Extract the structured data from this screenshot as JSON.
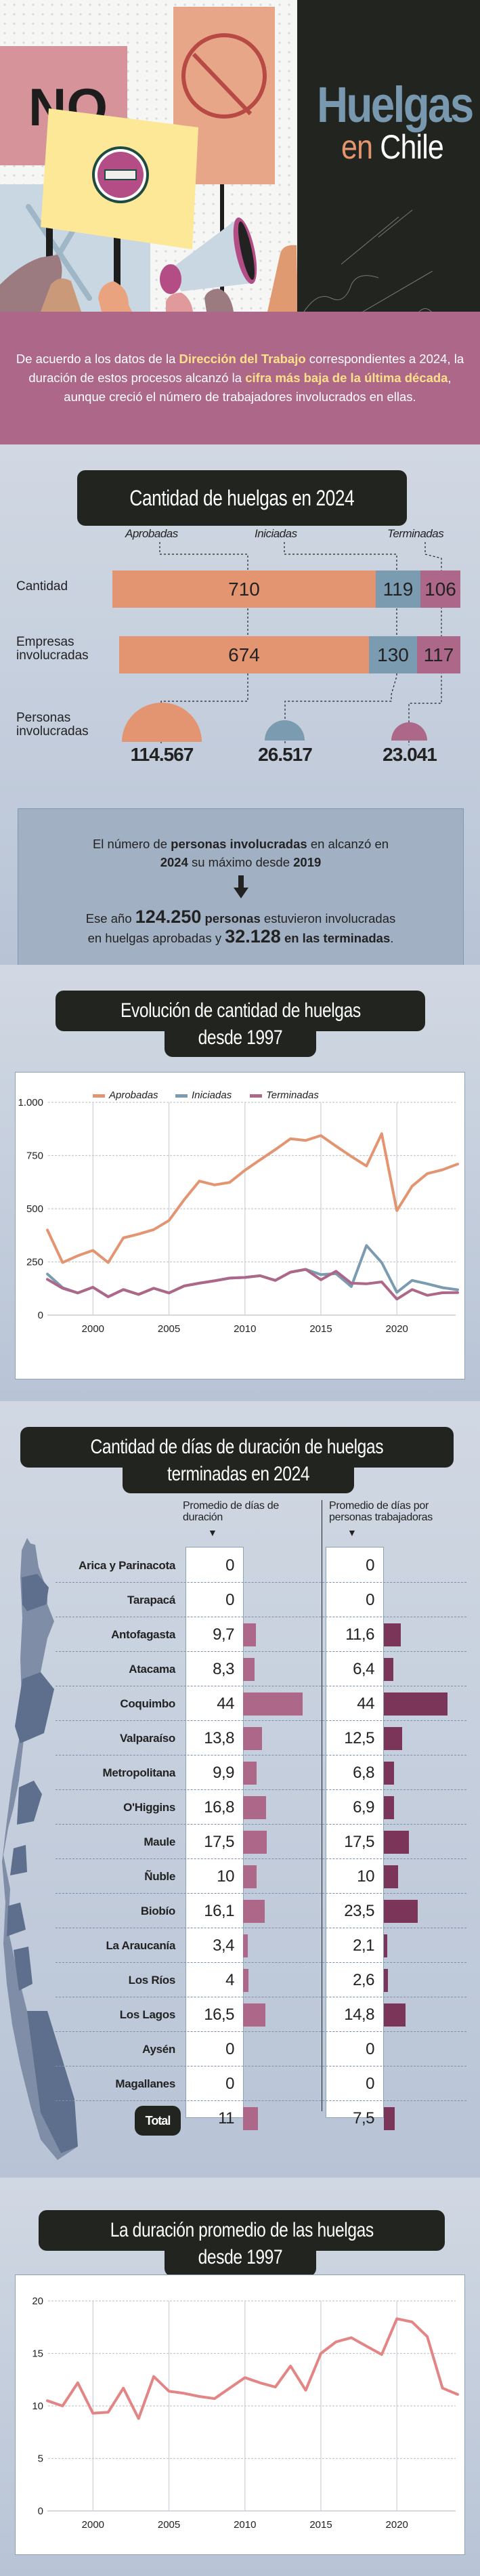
{
  "hero": {
    "title": "Huelgas",
    "subtitle_en": "en",
    "subtitle_chile": "Chile",
    "illustration": "protest-signs-illustration"
  },
  "intro": {
    "parts": [
      {
        "text": "De acuerdo a los datos de la ",
        "bold": false
      },
      {
        "text": "Dirección del Trabajo",
        "bold": true
      },
      {
        "text": " correspondientes a 2024, la duración de estos procesos alcanzó la ",
        "bold": false
      },
      {
        "text": "cifra más baja de la última década",
        "bold": true
      },
      {
        "text": ", aunque creció el número de trabajadores involucrados en ellas.",
        "bold": false
      }
    ]
  },
  "section1": {
    "title": "Cantidad de huelgas en 2024",
    "legend": {
      "aprobadas": "Aprobadas",
      "iniciadas": "Iniciadas",
      "terminadas": "Terminadas"
    },
    "rows": {
      "cantidad": {
        "label": "Cantidad",
        "aprobadas": "710",
        "iniciadas": "119",
        "terminadas": "106"
      },
      "empresas": {
        "label": "Empresas involucradas",
        "aprobadas": "674",
        "iniciadas": "130",
        "terminadas": "117"
      },
      "personas": {
        "label": "Personas involucradas",
        "aprobadas": "114.567",
        "iniciadas": "26.517",
        "terminadas": "23.041"
      }
    },
    "colors": {
      "aprobadas": "#e39572",
      "iniciadas": "#7a9bb0",
      "terminadas": "#ad6889"
    },
    "callout": {
      "line1_pre": "El número de ",
      "line1_bold": "personas involucradas",
      "line1_post": " en alcanzó en",
      "line2_year1": "2024",
      "line2_mid": " su máximo desde ",
      "line2_year2": "2019",
      "arrow": "🡇",
      "line3_pre": "Ese año ",
      "line3_big": "124.250",
      "line3_bold": " personas",
      "line3_post": " estuvieron involucradas",
      "line4_pre": "en huelgas aprobadas y ",
      "line4_big": "32.128",
      "line4_bold": " en las terminadas",
      "line4_post": "."
    }
  },
  "section2": {
    "title_line1": "Evolución de cantidad de huelgas",
    "title_line2": "desde 1997"
  },
  "section3": {
    "title_line1": "Cantidad de días de duración de huelgas",
    "title_line2": "terminadas en 2024",
    "col1_header": "Promedio de días de duración",
    "col2_header": "Promedio de días por personas trabajadoras",
    "arrow_glyph": "▼",
    "rows": [
      {
        "region": "Arica y Parinacota",
        "dur": "0",
        "per": "0",
        "dur_n": 0,
        "per_n": 0
      },
      {
        "region": "Tarapacá",
        "dur": "0",
        "per": "0",
        "dur_n": 0,
        "per_n": 0
      },
      {
        "region": "Antofagasta",
        "dur": "9,7",
        "per": "11,6",
        "dur_n": 9.7,
        "per_n": 11.6
      },
      {
        "region": "Atacama",
        "dur": "8,3",
        "per": "6,4",
        "dur_n": 8.3,
        "per_n": 6.4
      },
      {
        "region": "Coquimbo",
        "dur": "44",
        "per": "44",
        "dur_n": 44,
        "per_n": 44
      },
      {
        "region": "Valparaíso",
        "dur": "13,8",
        "per": "12,5",
        "dur_n": 13.8,
        "per_n": 12.5
      },
      {
        "region": "Metropolitana",
        "dur": "9,9",
        "per": "6,8",
        "dur_n": 9.9,
        "per_n": 6.8
      },
      {
        "region": "O'Higgins",
        "dur": "16,8",
        "per": "6,9",
        "dur_n": 16.8,
        "per_n": 6.9
      },
      {
        "region": "Maule",
        "dur": "17,5",
        "per": "17,5",
        "dur_n": 17.5,
        "per_n": 17.5
      },
      {
        "region": "Ñuble",
        "dur": "10",
        "per": "10",
        "dur_n": 10,
        "per_n": 10
      },
      {
        "region": "Biobío",
        "dur": "16,1",
        "per": "23,5",
        "dur_n": 16.1,
        "per_n": 23.5
      },
      {
        "region": "La Araucanía",
        "dur": "3,4",
        "per": "2,1",
        "dur_n": 3.4,
        "per_n": 2.1
      },
      {
        "region": "Los Ríos",
        "dur": "4",
        "per": "2,6",
        "dur_n": 4,
        "per_n": 2.6
      },
      {
        "region": "Los Lagos",
        "dur": "16,5",
        "per": "14,8",
        "dur_n": 16.5,
        "per_n": 14.8
      },
      {
        "region": "Aysén",
        "dur": "0",
        "per": "0",
        "dur_n": 0,
        "per_n": 0
      },
      {
        "region": "Magallanes",
        "dur": "0",
        "per": "0",
        "dur_n": 0,
        "per_n": 0
      }
    ],
    "total": {
      "label": "Total",
      "dur": "11",
      "per": "7,5",
      "dur_n": 11,
      "per_n": 7.5
    },
    "colors": {
      "dur_bar": "#ad6889",
      "per_bar": "#7a3558"
    }
  },
  "section4": {
    "title_line1": "La duración promedio de las huelgas",
    "title_line2": "desde 1997"
  },
  "chart_data": [
    {
      "type": "line",
      "title": "Evolución de cantidad de huelgas desde 1997",
      "xlabel": "",
      "ylabel": "",
      "x": [
        1997,
        1998,
        1999,
        2000,
        2001,
        2002,
        2003,
        2004,
        2005,
        2006,
        2007,
        2008,
        2009,
        2010,
        2011,
        2012,
        2013,
        2014,
        2015,
        2016,
        2017,
        2018,
        2019,
        2020,
        2021,
        2022,
        2023,
        2024
      ],
      "xticks": [
        "2000",
        "2005",
        "2010",
        "2015",
        "2020"
      ],
      "yticks": [
        "0",
        "250",
        "500",
        "750",
        "1.000"
      ],
      "ylim": [
        0,
        1000
      ],
      "grid": true,
      "legend_position": "top-center",
      "series": [
        {
          "name": "Aprobadas",
          "color": "#e39572",
          "values": [
            400,
            247,
            279,
            304,
            247,
            363,
            381,
            402,
            445,
            542,
            630,
            612,
            624,
            681,
            730,
            778,
            829,
            821,
            844,
            794,
            746,
            701,
            853,
            491,
            606,
            665,
            683,
            710
          ]
        },
        {
          "name": "Iniciadas",
          "color": "#7a9bb0",
          "values": [
            193,
            129,
            104,
            131,
            86,
            120,
            97,
            126,
            104,
            137,
            150,
            161,
            174,
            177,
            185,
            163,
            202,
            215,
            190,
            195,
            134,
            327,
            247,
            107,
            163,
            147,
            129,
            119
          ]
        },
        {
          "name": "Terminadas",
          "color": "#ad6889",
          "values": [
            168,
            126,
            104,
            131,
            86,
            120,
            97,
            126,
            104,
            137,
            150,
            161,
            174,
            177,
            185,
            163,
            202,
            215,
            166,
            206,
            150,
            147,
            156,
            75,
            120,
            93,
            105,
            106
          ]
        }
      ]
    },
    {
      "type": "line",
      "title": "La duración promedio de las huelgas desde 1997",
      "xlabel": "",
      "ylabel": "",
      "x": [
        1997,
        1998,
        1999,
        2000,
        2001,
        2002,
        2003,
        2004,
        2005,
        2006,
        2007,
        2008,
        2009,
        2010,
        2011,
        2012,
        2013,
        2014,
        2015,
        2016,
        2017,
        2018,
        2019,
        2020,
        2021,
        2022,
        2023,
        2024
      ],
      "xticks": [
        "2000",
        "2005",
        "2010",
        "2015",
        "2020"
      ],
      "yticks": [
        "0",
        "5",
        "10",
        "15",
        "20"
      ],
      "ylim": [
        0,
        20
      ],
      "grid": true,
      "series": [
        {
          "name": "Duración promedio",
          "color": "#e38585",
          "values": [
            10.5,
            10.0,
            12.2,
            9.3,
            9.4,
            11.7,
            8.8,
            12.8,
            11.4,
            11.2,
            10.9,
            10.7,
            11.7,
            12.7,
            12.2,
            11.8,
            13.8,
            11.5,
            15.0,
            16.1,
            16.5,
            15.7,
            14.9,
            18.3,
            18.0,
            16.6,
            11.7,
            11.1
          ]
        }
      ]
    }
  ]
}
